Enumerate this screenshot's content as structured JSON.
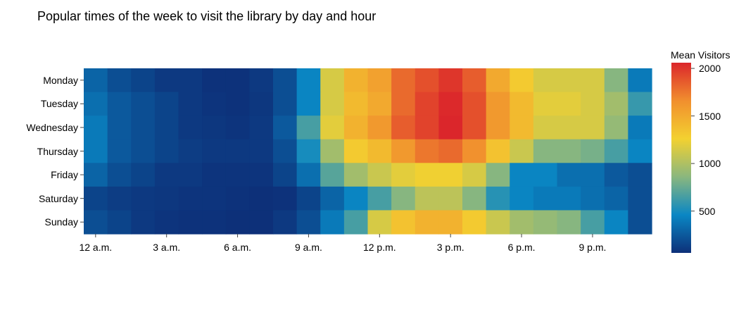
{
  "chart_data": {
    "type": "heatmap",
    "title": "Popular times of the week to visit the library by day and hour",
    "days": [
      "Monday",
      "Tuesday",
      "Wednesday",
      "Thursday",
      "Friday",
      "Saturday",
      "Sunday"
    ],
    "x_tick_labels": [
      "12 a.m.",
      "3 a.m.",
      "6 a.m.",
      "9 a.m.",
      "12 p.m.",
      "3 p.m.",
      "6 p.m.",
      "9 p.m."
    ],
    "x_tick_hours": [
      0,
      3,
      6,
      9,
      12,
      15,
      18,
      21
    ],
    "hours": [
      0,
      1,
      2,
      3,
      4,
      5,
      6,
      7,
      8,
      9,
      10,
      11,
      12,
      13,
      14,
      15,
      16,
      17,
      18,
      19,
      20,
      21,
      22,
      23
    ],
    "values": [
      [
        300,
        200,
        150,
        100,
        100,
        70,
        70,
        100,
        200,
        450,
        1150,
        1450,
        1550,
        1800,
        1900,
        2000,
        1850,
        1500,
        1300,
        1150,
        1150,
        1150,
        850,
        400
      ],
      [
        350,
        250,
        200,
        150,
        100,
        80,
        70,
        90,
        200,
        450,
        1150,
        1400,
        1500,
        1800,
        1950,
        2050,
        1900,
        1600,
        1400,
        1200,
        1200,
        1150,
        950,
        600
      ],
      [
        400,
        250,
        200,
        150,
        100,
        90,
        80,
        100,
        250,
        650,
        1200,
        1450,
        1600,
        1850,
        1950,
        2060,
        1900,
        1600,
        1400,
        1150,
        1150,
        1150,
        900,
        400
      ],
      [
        400,
        250,
        200,
        150,
        120,
        100,
        100,
        100,
        200,
        500,
        950,
        1300,
        1400,
        1600,
        1750,
        1800,
        1650,
        1350,
        1100,
        850,
        850,
        800,
        650,
        450
      ],
      [
        300,
        200,
        150,
        100,
        100,
        80,
        80,
        80,
        150,
        350,
        700,
        950,
        1100,
        1200,
        1250,
        1250,
        1150,
        850,
        450,
        450,
        350,
        350,
        250,
        200
      ],
      [
        150,
        120,
        100,
        90,
        80,
        80,
        70,
        60,
        70,
        150,
        300,
        450,
        650,
        850,
        1050,
        1050,
        850,
        550,
        450,
        400,
        400,
        350,
        300,
        200
      ],
      [
        200,
        150,
        100,
        80,
        70,
        70,
        60,
        60,
        100,
        200,
        400,
        650,
        1150,
        1350,
        1450,
        1450,
        1300,
        1100,
        950,
        900,
        850,
        650,
        450,
        200
      ]
    ],
    "zmin": 60,
    "zmax": 2060,
    "colorbar": {
      "title": "Mean Visitors",
      "ticks": [
        500,
        1000,
        1500,
        2000
      ],
      "colorscale": [
        "#0d3079",
        "#0a87c4",
        "#8ab77e",
        "#f3d130",
        "#f18f2e",
        "#db262b"
      ]
    }
  }
}
